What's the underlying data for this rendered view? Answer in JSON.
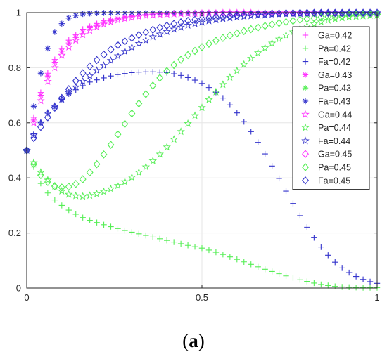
{
  "caption": {
    "open": "(",
    "letter": "a",
    "close": ")"
  },
  "chart_data": {
    "type": "scatter",
    "title": "",
    "xlabel": "",
    "ylabel": "",
    "xlim": [
      0,
      1
    ],
    "ylim": [
      0,
      1
    ],
    "x_ticks": [
      0,
      0.5,
      1
    ],
    "x_tick_labels": [
      "0",
      "0.5",
      "1"
    ],
    "y_ticks": [
      0,
      0.2,
      0.4,
      0.6,
      0.8,
      1
    ],
    "y_tick_labels": [
      "0",
      "0.2",
      "0.4",
      "0.6",
      "0.8",
      "1"
    ],
    "grid": true,
    "legend_position": "top-right",
    "colors": {
      "magenta": "#ff33ff",
      "green": "#55ee55",
      "blue": "#3333cc"
    },
    "x": [
      0.0,
      0.02,
      0.04,
      0.06,
      0.08,
      0.1,
      0.12,
      0.14,
      0.16,
      0.18,
      0.2,
      0.22,
      0.24,
      0.26,
      0.28,
      0.3,
      0.32,
      0.34,
      0.36,
      0.38,
      0.4,
      0.42,
      0.44,
      0.46,
      0.48,
      0.5,
      0.52,
      0.54,
      0.56,
      0.58,
      0.6,
      0.62,
      0.64,
      0.66,
      0.68,
      0.7,
      0.72,
      0.74,
      0.76,
      0.78,
      0.8,
      0.82,
      0.84,
      0.86,
      0.88,
      0.9,
      0.92,
      0.94,
      0.96,
      0.98,
      1.0
    ],
    "series": [
      {
        "name": "Ga=0.42",
        "color": "#ff33ff",
        "marker": "plus",
        "values": [
          0.5,
          0.62,
          0.71,
          0.78,
          0.83,
          0.87,
          0.9,
          0.92,
          0.94,
          0.95,
          0.96,
          0.97,
          0.975,
          0.98,
          0.985,
          0.99,
          0.99,
          0.99,
          0.995,
          0.995,
          0.995,
          0.998,
          0.998,
          0.998,
          0.998,
          0.998,
          0.999,
          0.999,
          0.999,
          0.999,
          0.999,
          0.999,
          0.999,
          0.999,
          0.999,
          0.999,
          0.999,
          0.999,
          0.999,
          0.999,
          0.999,
          0.999,
          0.999,
          0.999,
          0.999,
          0.999,
          0.999,
          0.999,
          0.999,
          0.999,
          0.999
        ]
      },
      {
        "name": "Pa=0.42",
        "color": "#55ee55",
        "marker": "plus",
        "values": [
          0.5,
          0.44,
          0.38,
          0.345,
          0.32,
          0.3,
          0.283,
          0.268,
          0.256,
          0.246,
          0.238,
          0.23,
          0.223,
          0.216,
          0.209,
          0.203,
          0.197,
          0.191,
          0.185,
          0.179,
          0.173,
          0.167,
          0.161,
          0.155,
          0.15,
          0.145,
          0.138,
          0.13,
          0.122,
          0.113,
          0.104,
          0.095,
          0.086,
          0.077,
          0.068,
          0.06,
          0.052,
          0.044,
          0.037,
          0.03,
          0.024,
          0.018,
          0.013,
          0.009,
          0.006,
          0.004,
          0.003,
          0.002,
          0.001,
          0.001,
          0.001
        ]
      },
      {
        "name": "Fa=0.42",
        "color": "#3333cc",
        "marker": "plus",
        "values": [
          0.5,
          0.56,
          0.6,
          0.635,
          0.66,
          0.685,
          0.705,
          0.72,
          0.735,
          0.748,
          0.756,
          0.763,
          0.77,
          0.775,
          0.779,
          0.782,
          0.784,
          0.785,
          0.785,
          0.784,
          0.782,
          0.778,
          0.772,
          0.764,
          0.755,
          0.743,
          0.728,
          0.711,
          0.69,
          0.665,
          0.636,
          0.604,
          0.568,
          0.529,
          0.487,
          0.443,
          0.398,
          0.352,
          0.307,
          0.263,
          0.221,
          0.183,
          0.149,
          0.119,
          0.094,
          0.073,
          0.056,
          0.042,
          0.031,
          0.023,
          0.017
        ]
      },
      {
        "name": "Ga=0.43",
        "color": "#ff33ff",
        "marker": "asterisk",
        "values": [
          0.5,
          0.61,
          0.7,
          0.77,
          0.82,
          0.86,
          0.89,
          0.91,
          0.93,
          0.945,
          0.955,
          0.965,
          0.972,
          0.978,
          0.983,
          0.987,
          0.99,
          0.992,
          0.994,
          0.995,
          0.996,
          0.997,
          0.998,
          0.998,
          0.998,
          0.999,
          0.999,
          0.999,
          0.999,
          0.999,
          0.999,
          0.999,
          0.999,
          0.999,
          0.999,
          0.999,
          0.999,
          0.999,
          0.999,
          0.999,
          0.999,
          0.999,
          0.999,
          0.999,
          0.999,
          0.999,
          0.999,
          0.999,
          0.999,
          0.999,
          0.999
        ]
      },
      {
        "name": "Pa=0.43",
        "color": "#55ee55",
        "marker": "asterisk",
        "values": []
      },
      {
        "name": "Fa=0.43",
        "color": "#3333cc",
        "marker": "asterisk",
        "values": [
          0.5,
          0.66,
          0.78,
          0.87,
          0.93,
          0.96,
          0.98,
          0.99,
          0.995,
          0.997,
          0.998,
          0.999,
          0.999,
          0.999,
          0.999,
          0.999,
          0.999,
          0.999,
          0.999,
          0.999,
          0.999,
          0.999,
          0.999,
          0.999,
          0.999,
          0.999,
          0.999,
          0.999,
          0.999,
          0.999,
          0.999,
          0.999,
          0.999,
          0.999,
          0.999,
          0.999,
          0.999,
          0.999,
          0.999,
          0.999,
          0.999,
          0.999,
          0.999,
          0.999,
          0.999,
          0.999,
          0.999,
          0.999,
          0.999,
          0.999,
          0.999
        ]
      },
      {
        "name": "Ga=0.44",
        "color": "#ff33ff",
        "marker": "star",
        "values": [
          0.5,
          0.6,
          0.68,
          0.75,
          0.8,
          0.845,
          0.875,
          0.9,
          0.92,
          0.935,
          0.948,
          0.958,
          0.966,
          0.973,
          0.978,
          0.982,
          0.986,
          0.989,
          0.991,
          0.993,
          0.994,
          0.995,
          0.996,
          0.997,
          0.997,
          0.998,
          0.998,
          0.998,
          0.999,
          0.999,
          0.999,
          0.999,
          0.999,
          0.999,
          0.999,
          0.999,
          0.999,
          0.999,
          0.999,
          0.999,
          0.999,
          0.999,
          0.999,
          0.999,
          0.999,
          0.999,
          0.999,
          0.999,
          0.999,
          0.999,
          0.999
        ]
      },
      {
        "name": "Pa=0.44",
        "color": "#55ee55",
        "marker": "star",
        "values": [
          0.5,
          0.455,
          0.42,
          0.392,
          0.37,
          0.352,
          0.34,
          0.335,
          0.333,
          0.336,
          0.342,
          0.35,
          0.36,
          0.372,
          0.386,
          0.402,
          0.42,
          0.44,
          0.462,
          0.486,
          0.512,
          0.54,
          0.568,
          0.597,
          0.626,
          0.655,
          0.684,
          0.712,
          0.739,
          0.765,
          0.789,
          0.812,
          0.834,
          0.854,
          0.872,
          0.889,
          0.904,
          0.918,
          0.93,
          0.941,
          0.951,
          0.959,
          0.966,
          0.972,
          0.977,
          0.981,
          0.984,
          0.986,
          0.988,
          0.989,
          0.99
        ]
      },
      {
        "name": "Fa=0.44",
        "color": "#3333cc",
        "marker": "star",
        "values": [
          0.5,
          0.555,
          0.6,
          0.635,
          0.66,
          0.685,
          0.71,
          0.73,
          0.75,
          0.77,
          0.79,
          0.808,
          0.826,
          0.843,
          0.859,
          0.874,
          0.888,
          0.9,
          0.912,
          0.922,
          0.931,
          0.94,
          0.947,
          0.954,
          0.96,
          0.965,
          0.97,
          0.974,
          0.978,
          0.981,
          0.984,
          0.986,
          0.988,
          0.99,
          0.991,
          0.993,
          0.994,
          0.995,
          0.996,
          0.996,
          0.997,
          0.997,
          0.998,
          0.998,
          0.998,
          0.998,
          0.999,
          0.999,
          0.999,
          0.999,
          0.999
        ]
      },
      {
        "name": "Ga=0.45",
        "color": "#ff33ff",
        "marker": "diamond",
        "values": []
      },
      {
        "name": "Pa=0.45",
        "color": "#55ee55",
        "marker": "diamond",
        "values": [
          0.5,
          0.45,
          0.41,
          0.385,
          0.37,
          0.365,
          0.368,
          0.378,
          0.395,
          0.42,
          0.45,
          0.485,
          0.52,
          0.558,
          0.596,
          0.634,
          0.67,
          0.704,
          0.735,
          0.763,
          0.788,
          0.81,
          0.829,
          0.846,
          0.861,
          0.875,
          0.887,
          0.898,
          0.908,
          0.917,
          0.925,
          0.933,
          0.94,
          0.946,
          0.952,
          0.957,
          0.962,
          0.966,
          0.97,
          0.974,
          0.977,
          0.98,
          0.983,
          0.985,
          0.987,
          0.989,
          0.991,
          0.992,
          0.993,
          0.994,
          0.995
        ]
      },
      {
        "name": "Fa=0.45",
        "color": "#3333cc",
        "marker": "diamond",
        "values": [
          0.5,
          0.545,
          0.585,
          0.62,
          0.655,
          0.69,
          0.722,
          0.752,
          0.78,
          0.805,
          0.828,
          0.848,
          0.866,
          0.882,
          0.896,
          0.908,
          0.919,
          0.929,
          0.938,
          0.946,
          0.953,
          0.959,
          0.965,
          0.97,
          0.974,
          0.978,
          0.981,
          0.984,
          0.987,
          0.989,
          0.991,
          0.992,
          0.994,
          0.995,
          0.996,
          0.997,
          0.997,
          0.998,
          0.998,
          0.999,
          0.999,
          0.999,
          0.999,
          0.999,
          0.999,
          0.999,
          0.999,
          0.999,
          0.999,
          0.999,
          0.999
        ]
      }
    ]
  }
}
